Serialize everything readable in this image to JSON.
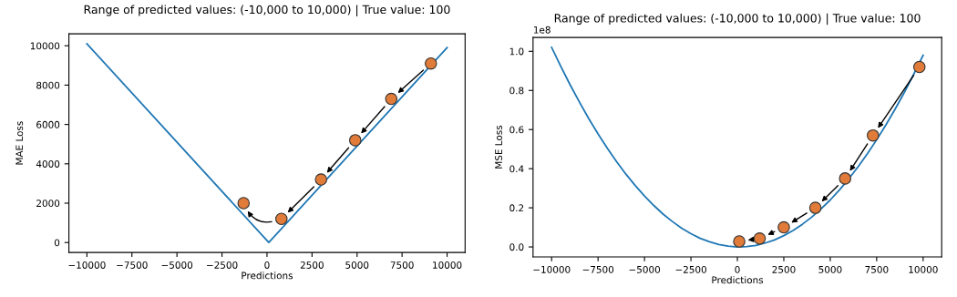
{
  "chart_data": [
    {
      "type": "line",
      "title": "Range of predicted values: (-10,000 to 10,000) | True value: 100",
      "xlabel": "Predictions",
      "ylabel": "MAE Loss",
      "series": [
        {
          "color": "#1f77b4",
          "x": [
            -10000,
            100,
            10000
          ],
          "values": [
            10100,
            0,
            9900
          ]
        },
        {
          "type": "scatter",
          "color": "#e07b39",
          "marker": "circle",
          "x": [
            9100,
            6900,
            4900,
            3000,
            800,
            -1300
          ],
          "values": [
            9100,
            7300,
            5200,
            3200,
            1200,
            2000
          ]
        }
      ],
      "xlim": [
        -11000,
        11000
      ],
      "ylim": [
        -505,
        10605
      ],
      "xticks": [
        {
          "value": -10000,
          "label": "−10000"
        },
        {
          "value": -7500,
          "label": "−7500"
        },
        {
          "value": -5000,
          "label": "−5000"
        },
        {
          "value": -2500,
          "label": "−2500"
        },
        0,
        2500,
        5000,
        7500,
        10000
      ],
      "yticks": [
        0,
        2000,
        4000,
        6000,
        8000,
        10000
      ],
      "grid": false
    },
    {
      "type": "line",
      "title": "Range of predicted values: (-10,000 to 10,000) | True value: 100",
      "xlabel": "Predictions",
      "ylabel": "MSE Loss",
      "annotations": [
        "1e8"
      ],
      "series": [
        {
          "color": "#1f77b4",
          "x": [
            -10000,
            -9500,
            -9000,
            -8500,
            -8000,
            -7500,
            -7000,
            -6500,
            -6000,
            -5500,
            -5000,
            -4500,
            -4000,
            -3500,
            -3000,
            -2500,
            -2000,
            -1500,
            -1000,
            -500,
            0,
            100,
            500,
            1000,
            1500,
            2000,
            2500,
            3000,
            3500,
            4000,
            4500,
            5000,
            5500,
            6000,
            6500,
            7000,
            7500,
            8000,
            8500,
            9000,
            9500,
            10000
          ],
          "values": [
            1.02,
            0.922,
            0.828,
            0.74,
            0.656,
            0.578,
            0.504,
            0.436,
            0.372,
            0.314,
            0.26,
            0.212,
            0.168,
            0.13,
            0.096,
            0.068,
            0.044,
            0.026,
            0.012,
            0.004,
            0,
            0,
            0.002,
            0.008,
            0.02,
            0.036,
            0.058,
            0.084,
            0.116,
            0.152,
            0.194,
            0.24,
            0.292,
            0.348,
            0.41,
            0.476,
            0.548,
            0.624,
            0.706,
            0.792,
            0.884,
            0.98
          ]
        },
        {
          "type": "scatter",
          "color": "#e07b39",
          "marker": "circle",
          "x": [
            9800,
            7300,
            5800,
            4200,
            2500,
            1200,
            100
          ],
          "values": [
            0.92,
            0.57,
            0.35,
            0.2,
            0.1,
            0.043,
            0.028
          ]
        }
      ],
      "xlim": [
        -11000,
        11000
      ],
      "ylim": [
        -0.051,
        1.071
      ],
      "xticks": [
        {
          "value": -10000,
          "label": "−10000"
        },
        {
          "value": -7500,
          "label": "−7500"
        },
        {
          "value": -5000,
          "label": "−5000"
        },
        {
          "value": -2500,
          "label": "−2500"
        },
        0,
        2500,
        5000,
        7500,
        10000
      ],
      "yticks": [
        {
          "value": 0,
          "label": "0.0"
        },
        0.2,
        0.4,
        0.6,
        0.8,
        {
          "value": 1,
          "label": "1.0"
        }
      ],
      "grid": false
    }
  ]
}
